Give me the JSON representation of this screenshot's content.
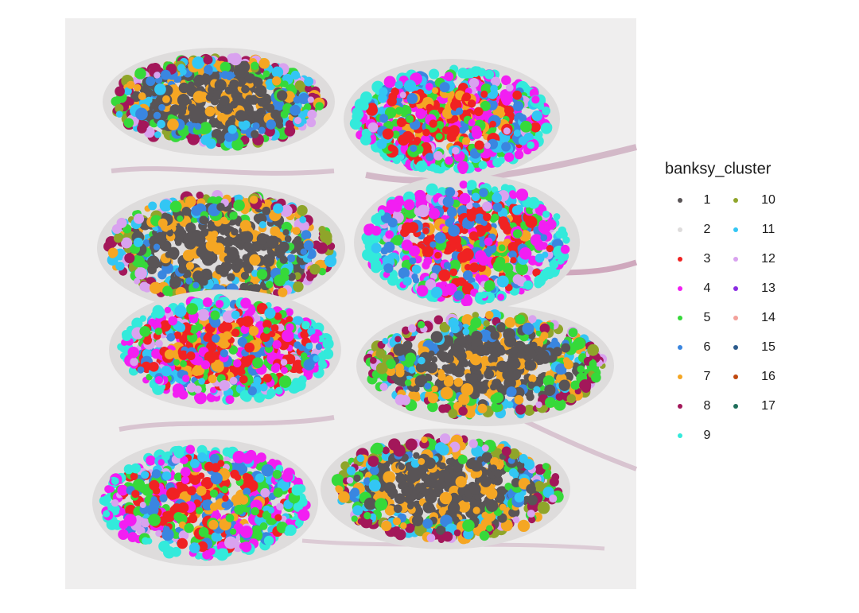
{
  "legend": {
    "title": "banksy_cluster",
    "entries": [
      {
        "label": "1",
        "color": "#595456"
      },
      {
        "label": "2",
        "color": "#dedcdc"
      },
      {
        "label": "3",
        "color": "#f02222"
      },
      {
        "label": "4",
        "color": "#f21ef2"
      },
      {
        "label": "5",
        "color": "#36d93a"
      },
      {
        "label": "6",
        "color": "#3a86e0"
      },
      {
        "label": "7",
        "color": "#f5a623"
      },
      {
        "label": "8",
        "color": "#a3175a"
      },
      {
        "label": "9",
        "color": "#33eadb"
      },
      {
        "label": "10",
        "color": "#8fa52a"
      },
      {
        "label": "11",
        "color": "#33c6f4"
      },
      {
        "label": "12",
        "color": "#d9a2ef"
      },
      {
        "label": "13",
        "color": "#8a2be2"
      },
      {
        "label": "14",
        "color": "#f3a19b"
      },
      {
        "label": "15",
        "color": "#2c5b8c"
      },
      {
        "label": "16",
        "color": "#c0480f"
      },
      {
        "label": "17",
        "color": "#1f6e5a"
      }
    ]
  }
}
